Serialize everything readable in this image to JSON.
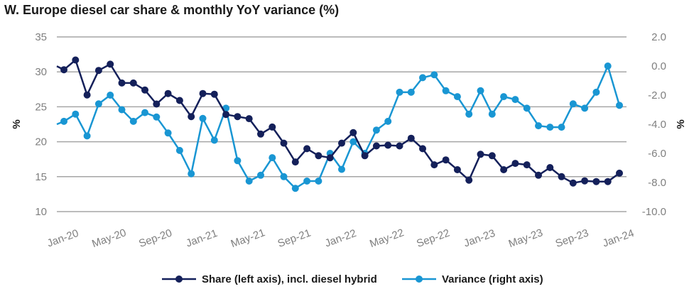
{
  "chart_data": {
    "type": "line",
    "title": "W. Europe diesel car share & monthly YoY variance (%)",
    "left_axis": {
      "label": "%",
      "ylim": [
        10,
        35
      ],
      "ticks": [
        10,
        15,
        20,
        25,
        30,
        35
      ]
    },
    "right_axis": {
      "label": "%",
      "ylim": [
        -10,
        2
      ],
      "ticks": [
        "-10.0",
        "-8.0",
        "-6.0",
        "-4.0",
        "-2.0",
        "0.0",
        "2.0"
      ]
    },
    "x_tick_labels": [
      "Jan-20",
      "May-20",
      "Sep-20",
      "Jan-21",
      "May-21",
      "Sep-21",
      "Jan-22",
      "May-22",
      "Sep-22",
      "Jan-23",
      "May-23",
      "Sep-23",
      "Jan-24"
    ],
    "grid": true,
    "legend_position": "bottom",
    "colors": {
      "share": "#14205a",
      "variance": "#1996d3",
      "grid": "#a6a6a6"
    },
    "series": [
      {
        "name": "Share (left axis), incl. diesel hybrid",
        "axis": "left",
        "values": [
          30.3,
          31.7,
          26.7,
          30.2,
          31.1,
          28.4,
          28.4,
          27.4,
          25.4,
          26.9,
          25.9,
          23.6,
          26.9,
          26.8,
          23.9,
          23.6,
          23.3,
          21.1,
          22.1,
          19.8,
          17.1,
          19.0,
          18.0,
          17.7,
          19.8,
          21.3,
          18.0,
          19.4,
          19.5,
          19.4,
          20.5,
          19.0,
          16.7,
          17.4,
          16.0,
          14.5,
          18.2,
          18.0,
          16.0,
          16.9,
          16.7,
          15.2,
          16.3,
          15.0,
          14.1,
          14.4,
          14.3,
          14.3,
          15.5
        ]
      },
      {
        "name": "Variance (right axis)",
        "axis": "right",
        "values": [
          -3.8,
          -3.3,
          -4.8,
          -2.6,
          -2.0,
          -3.0,
          -3.8,
          -3.2,
          -3.5,
          -4.6,
          -5.8,
          -7.4,
          -3.6,
          -5.1,
          -2.9,
          -6.5,
          -7.9,
          -7.5,
          -6.3,
          -7.6,
          -8.4,
          -7.9,
          -7.9,
          -6.0,
          -7.1,
          -5.2,
          -6.0,
          -4.4,
          -3.8,
          -1.8,
          -1.8,
          -0.8,
          -0.6,
          -1.7,
          -2.1,
          -3.3,
          -1.7,
          -3.3,
          -2.1,
          -2.3,
          -2.9,
          -4.1,
          -4.2,
          -4.2,
          -2.6,
          -2.9,
          -1.8,
          0.0,
          -2.7
        ]
      }
    ],
    "legend_labels": [
      "Share (left axis), incl. diesel hybrid",
      "Variance (right axis)"
    ]
  }
}
